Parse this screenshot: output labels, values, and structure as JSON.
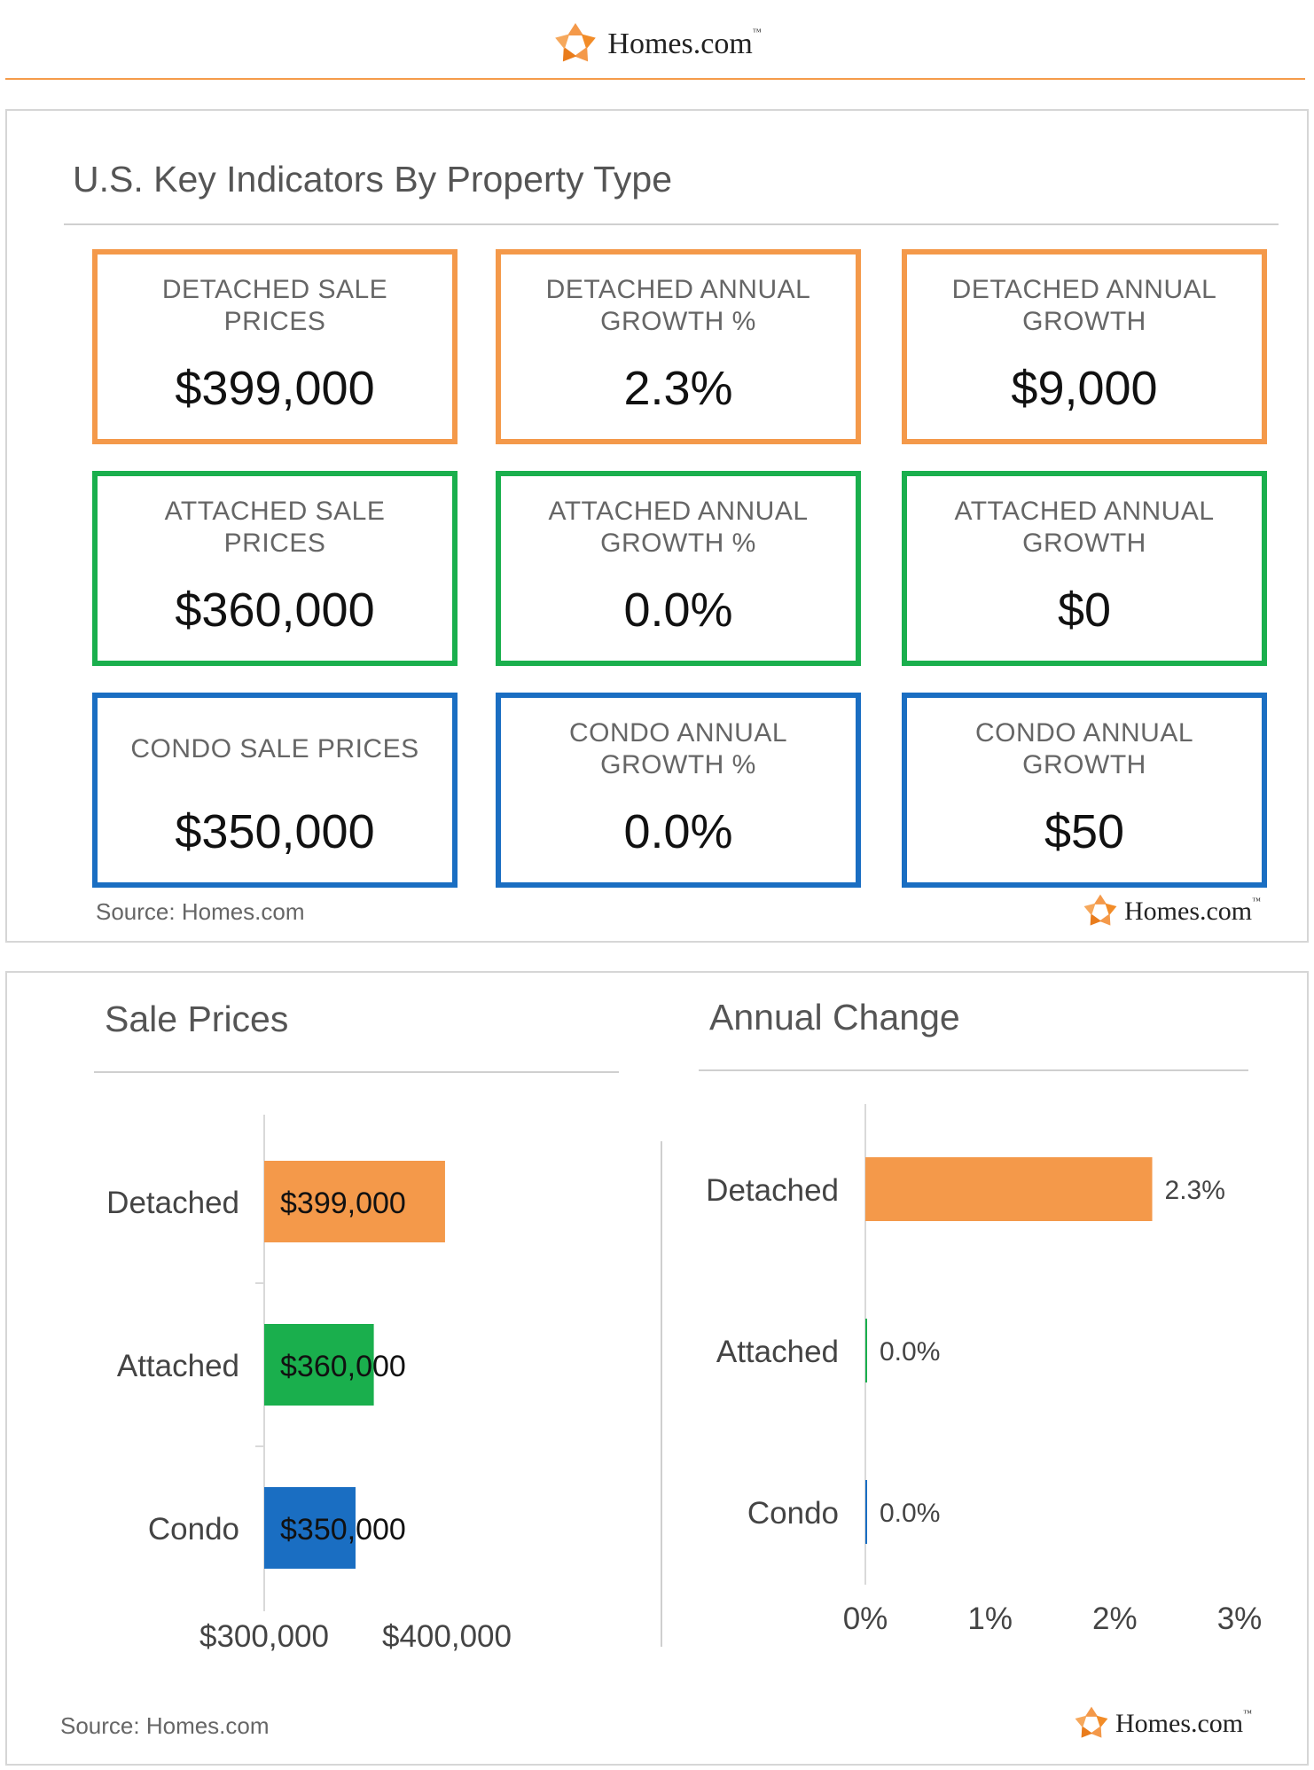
{
  "brand": {
    "name": "Homes.com",
    "tm": "™"
  },
  "colors": {
    "detached": "#f4994a",
    "attached": "#1aaf4d",
    "condo": "#1a6ec2",
    "accent_rule": "#f59b4a"
  },
  "indicators": {
    "title": "U.S. Key Indicators By Property Type",
    "cards": [
      {
        "label": "DETACHED SALE\nPRICES",
        "value": "$399,000",
        "type": "detached"
      },
      {
        "label": "DETACHED ANNUAL\nGROWTH %",
        "value": "2.3%",
        "type": "detached"
      },
      {
        "label": "DETACHED ANNUAL\nGROWTH",
        "value": "$9,000",
        "type": "detached"
      },
      {
        "label": "ATTACHED SALE\nPRICES",
        "value": "$360,000",
        "type": "attached"
      },
      {
        "label": "ATTACHED ANNUAL\nGROWTH %",
        "value": "0.0%",
        "type": "attached"
      },
      {
        "label": "ATTACHED ANNUAL\nGROWTH",
        "value": "$0",
        "type": "attached"
      },
      {
        "label": "CONDO SALE PRICES",
        "value": "$350,000",
        "type": "condo"
      },
      {
        "label": "CONDO ANNUAL\nGROWTH %",
        "value": "0.0%",
        "type": "condo"
      },
      {
        "label": "CONDO ANNUAL\nGROWTH",
        "value": "$50",
        "type": "condo"
      }
    ],
    "source": "Source: Homes.com"
  },
  "bottom": {
    "source": "Source: Homes.com"
  },
  "chart_data": [
    {
      "type": "bar",
      "orientation": "horizontal",
      "title": "Sale Prices",
      "categories": [
        "Detached",
        "Attached",
        "Condo"
      ],
      "values": [
        399000,
        360000,
        350000
      ],
      "data_labels": [
        "$399,000",
        "$360,000",
        "$350,000"
      ],
      "bar_colors": [
        "#f4994a",
        "#1aaf4d",
        "#1a6ec2"
      ],
      "xlim": [
        300000,
        400000
      ],
      "x_ticks": [
        300000,
        400000
      ],
      "x_tick_labels": [
        "$300,000",
        "$400,000"
      ],
      "grid": false,
      "legend": "none"
    },
    {
      "type": "bar",
      "orientation": "horizontal",
      "title": "Annual Change",
      "categories": [
        "Detached",
        "Attached",
        "Condo"
      ],
      "values": [
        2.3,
        0.0,
        0.0
      ],
      "data_labels": [
        "2.3%",
        "0.0%",
        "0.0%"
      ],
      "bar_colors": [
        "#f4994a",
        "#1aaf4d",
        "#1a6ec2"
      ],
      "xlim": [
        0,
        3
      ],
      "x_ticks": [
        0,
        1,
        2,
        3
      ],
      "x_tick_labels": [
        "0%",
        "1%",
        "2%",
        "3%"
      ],
      "grid": false,
      "legend": "none"
    }
  ]
}
